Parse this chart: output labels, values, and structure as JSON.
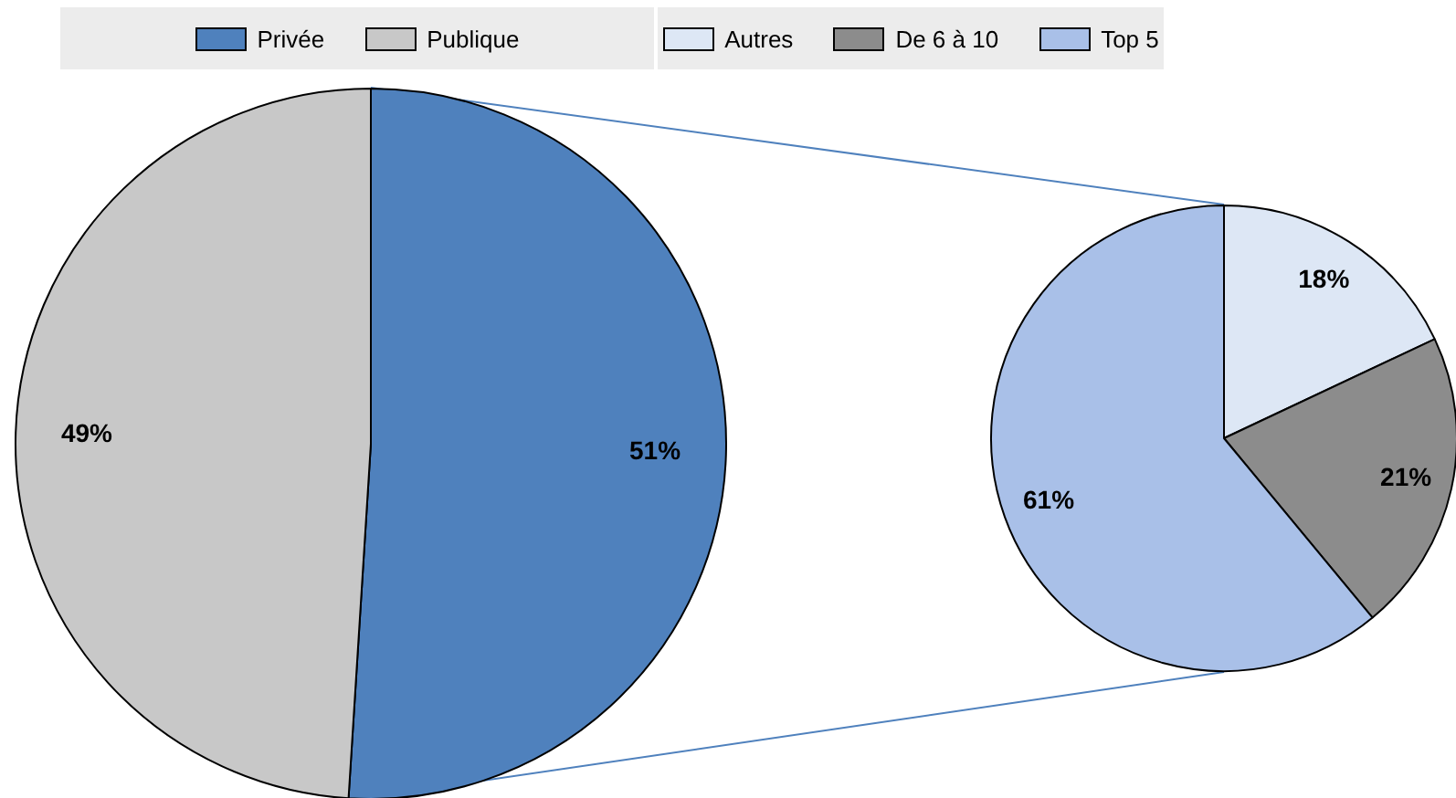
{
  "chart_data": [
    {
      "type": "pie",
      "categories": [
        "Privée",
        "Publique"
      ],
      "values": [
        51,
        49
      ],
      "colors": [
        "#4f81bd",
        "#c8c8c8"
      ],
      "value_labels": [
        "51%",
        "49%"
      ],
      "legend": "top"
    },
    {
      "type": "pie",
      "categories": [
        "Autres",
        "De 6 à 10",
        "Top 5"
      ],
      "values": [
        18,
        21,
        61
      ],
      "colors": [
        "#dde7f5",
        "#8c8c8c",
        "#a9c0e8"
      ],
      "value_labels": [
        "18%",
        "21%",
        "61%"
      ],
      "legend": "top"
    }
  ]
}
